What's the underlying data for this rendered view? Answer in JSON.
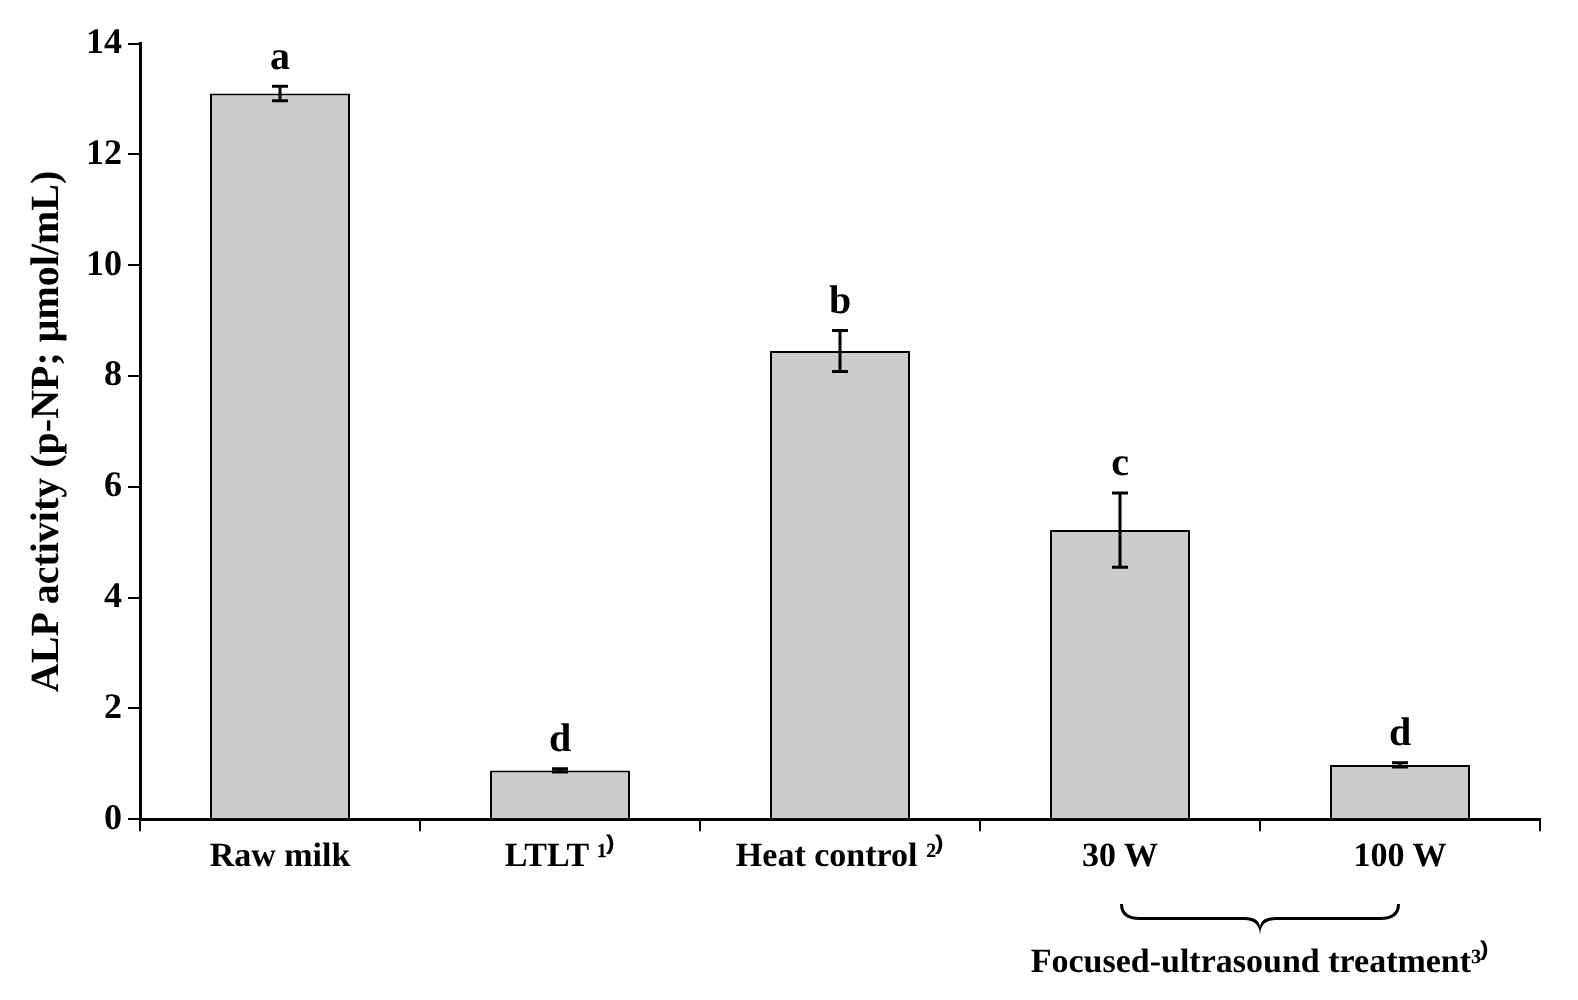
{
  "chart_data": {
    "type": "bar",
    "ylabel": "ALP activity (p-NP; μmol/mL)",
    "categories": [
      "Raw milk",
      "LTLT ¹⁾",
      "Heat control ²⁾",
      "30 W",
      "100 W"
    ],
    "values": [
      13.1,
      0.88,
      8.45,
      5.22,
      0.98
    ],
    "errors": [
      0.13,
      0.03,
      0.37,
      0.67,
      0.04
    ],
    "color": "#cccccc",
    "ylim": [
      0,
      14
    ],
    "yticks": [
      0,
      2,
      4,
      6,
      8,
      10,
      12,
      14
    ],
    "grid": false,
    "legend": false,
    "annotations": [
      {
        "text": "a",
        "x": "Raw milk",
        "y": 13.1
      },
      {
        "text": "d",
        "x": "LTLT ¹⁾",
        "y": 0.88
      },
      {
        "text": "b",
        "x": "Heat control ²⁾",
        "y": 8.45
      },
      {
        "text": "c",
        "x": "30 W",
        "y": 5.22
      },
      {
        "text": "d",
        "x": "100 W",
        "y": 0.98
      },
      "Focused-ultrasound treatment³⁾"
    ]
  }
}
